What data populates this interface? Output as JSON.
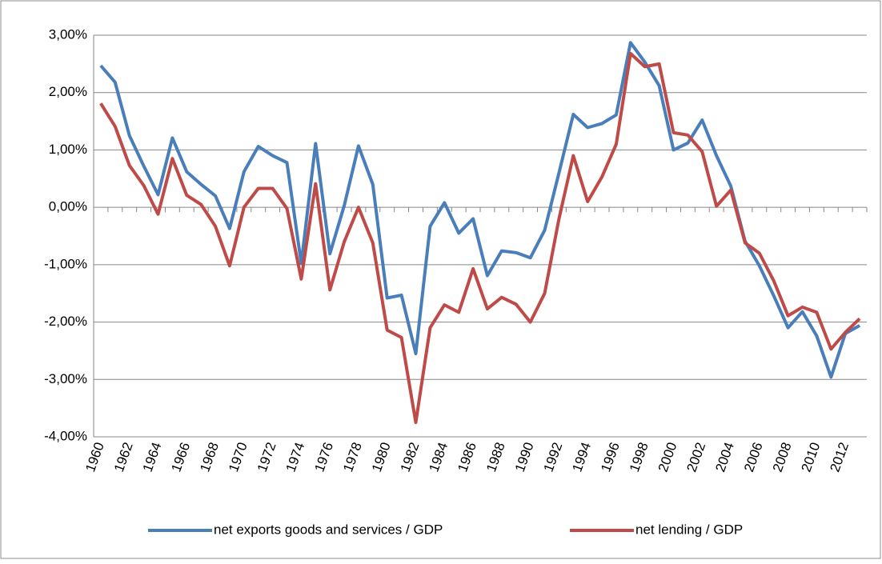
{
  "chart_data": {
    "type": "line",
    "categories": [
      "1960",
      null,
      "1962",
      null,
      "1964",
      null,
      "1966",
      null,
      "1968",
      null,
      "1970",
      null,
      "1972",
      null,
      "1974",
      null,
      "1976",
      null,
      "1978",
      null,
      "1980",
      null,
      "1982",
      null,
      "1984",
      null,
      "1986",
      null,
      "1988",
      null,
      "1990",
      null,
      "1992",
      null,
      "1994",
      null,
      "1996",
      null,
      "1998",
      null,
      "2000",
      null,
      "2002",
      null,
      "2004",
      null,
      "2006",
      null,
      "2008",
      null,
      "2010",
      null,
      "2012",
      null
    ],
    "series": [
      {
        "name": "net exports goods and services / GDP",
        "color": "#4a7ebb",
        "values": [
          2.47,
          2.18,
          1.25,
          0.72,
          0.22,
          1.21,
          0.62,
          0.4,
          0.2,
          -0.37,
          0.62,
          1.06,
          0.9,
          0.78,
          -0.98,
          1.11,
          -0.81,
          0.03,
          1.07,
          0.4,
          -1.58,
          -1.53,
          -2.55,
          -0.33,
          0.08,
          -0.45,
          -0.2,
          -1.19,
          -0.76,
          -0.79,
          -0.88,
          -0.4,
          0.6,
          1.62,
          1.39,
          1.46,
          1.61,
          2.87,
          2.53,
          2.12,
          1.0,
          1.12,
          1.52,
          0.9,
          0.37,
          -0.59,
          -1.02,
          -1.54,
          -2.1,
          -1.82,
          -2.24,
          -2.96,
          -2.2,
          -2.06
        ]
      },
      {
        "name": "net lending / GDP",
        "color": "#be4b48",
        "values": [
          1.81,
          1.41,
          0.73,
          0.38,
          -0.12,
          0.85,
          0.21,
          0.05,
          -0.33,
          -1.02,
          0.0,
          0.33,
          0.33,
          -0.02,
          -1.25,
          0.41,
          -1.44,
          -0.6,
          0.0,
          -0.62,
          -2.14,
          -2.27,
          -3.75,
          -2.1,
          -1.7,
          -1.83,
          -1.07,
          -1.77,
          -1.57,
          -1.69,
          -2.0,
          -1.5,
          -0.2,
          0.9,
          0.1,
          0.53,
          1.1,
          2.68,
          2.45,
          2.5,
          1.3,
          1.26,
          0.97,
          0.02,
          0.3,
          -0.62,
          -0.8,
          -1.28,
          -1.89,
          -1.74,
          -1.83,
          -2.47,
          -2.18,
          -1.94
        ]
      }
    ],
    "ylim": [
      -4,
      3
    ],
    "yticks": [
      {
        "value": -4,
        "label": "-4,00%"
      },
      {
        "value": -3,
        "label": "-3,00%"
      },
      {
        "value": -2,
        "label": "-2,00%"
      },
      {
        "value": -1,
        "label": "-1,00%"
      },
      {
        "value": 0,
        "label": "0,00%"
      },
      {
        "value": 1,
        "label": "1,00%"
      },
      {
        "value": 2,
        "label": "2,00%"
      },
      {
        "value": 3,
        "label": "3,00%"
      }
    ],
    "grid": true,
    "legend": "bottom"
  }
}
